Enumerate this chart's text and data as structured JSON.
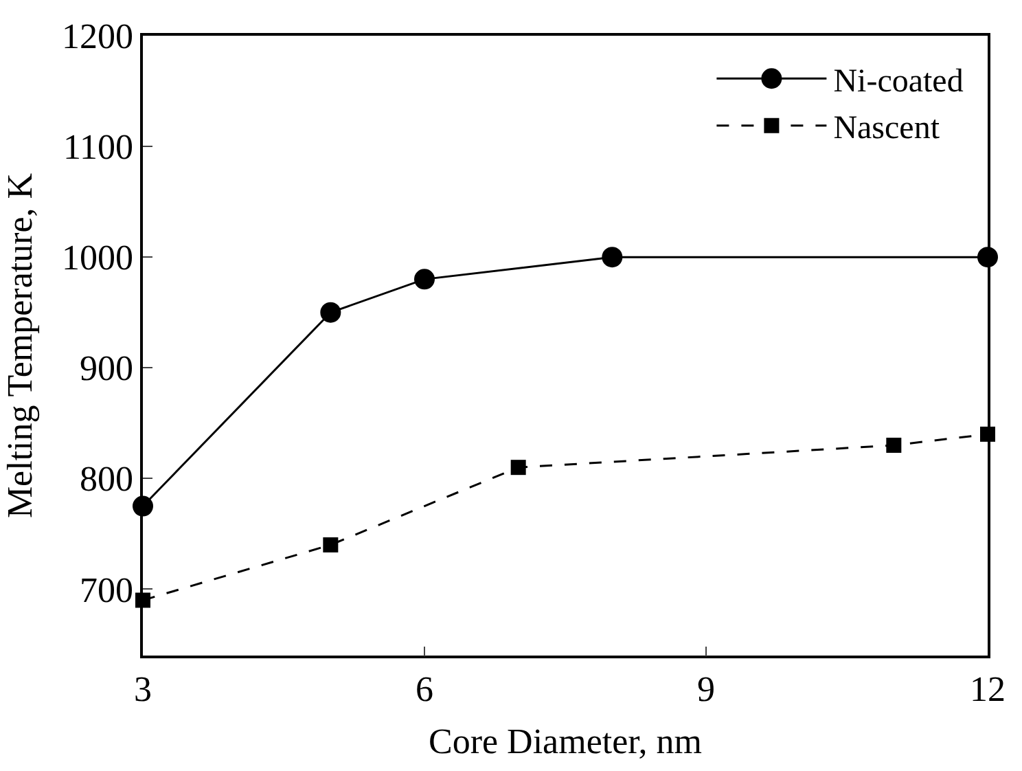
{
  "chart_data": {
    "type": "line",
    "xlabel": "Core Diameter, nm",
    "ylabel": "Melting Temperature, K",
    "xlim": [
      3,
      12
    ],
    "xticks": [
      3,
      6,
      9,
      12
    ],
    "ylim": [
      640,
      1200
    ],
    "yticks": [
      700,
      800,
      900,
      1000,
      1100,
      1200
    ],
    "legend": "top right",
    "series": [
      {
        "name": "Ni-coated",
        "color": "#000000",
        "x": [
          3,
          5,
          6,
          8,
          12
        ],
        "values": [
          775,
          950,
          980,
          1000,
          1000
        ],
        "marker": "circle",
        "line_style": "solid"
      },
      {
        "name": "Nascent",
        "color": "#000000",
        "x": [
          3,
          5,
          7,
          11,
          12
        ],
        "values": [
          690,
          740,
          810,
          830,
          840
        ],
        "marker": "square",
        "line_style": "dashed"
      }
    ]
  }
}
